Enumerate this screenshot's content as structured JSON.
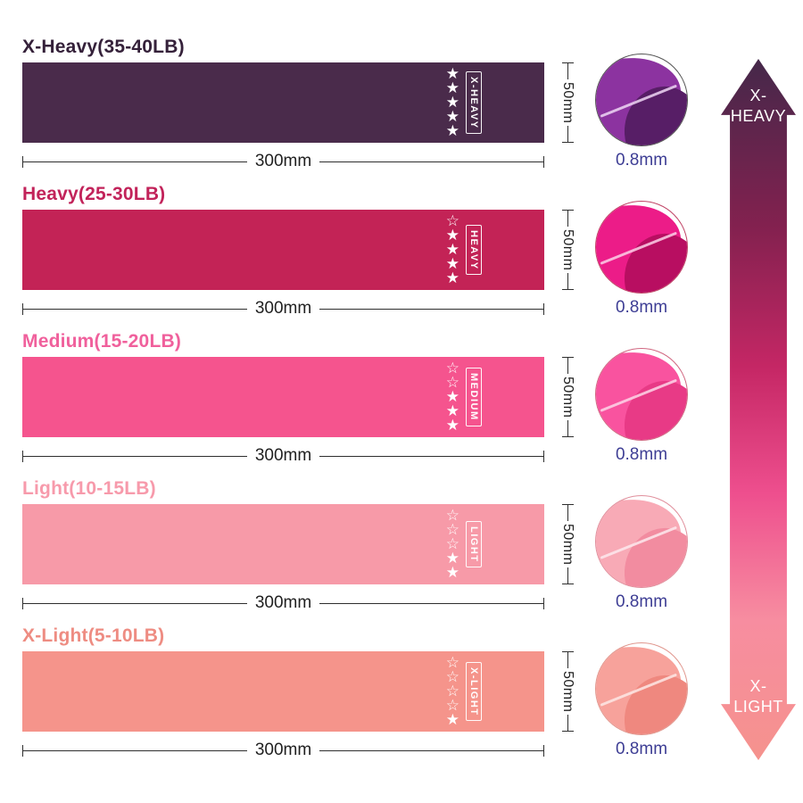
{
  "dimensions": {
    "width": "300mm",
    "height": "50mm",
    "thickness": "0.8mm"
  },
  "arrow": {
    "top_label": "X-\nHEAVY",
    "bottom_label": "X-\nLIGHT",
    "colors": [
      "#45284a",
      "#83214f",
      "#c52765",
      "#ee4f8e",
      "#f78da0",
      "#f5928d"
    ]
  },
  "products": [
    {
      "title": "X-Heavy(35-40LB)",
      "title_color": "#35213a",
      "band_color": "#4a2b4b",
      "label": "X-HEAVY",
      "stars": "★\n★\n★\n★\n★",
      "rating_filled": 5,
      "rating_max": 5,
      "swatch": {
        "face": "#8c33a0",
        "shade": "#571e66",
        "crease": "#efd7f5",
        "border": "#555555"
      }
    },
    {
      "title": "Heavy(25-30LB)",
      "title_color": "#c2235a",
      "band_color": "#c32356",
      "label": "HEAVY",
      "stars": "☆\n★\n★\n★\n★",
      "rating_filled": 4,
      "rating_max": 5,
      "swatch": {
        "face": "#ec1c88",
        "shade": "#b80e61",
        "crease": "#fbd0e8",
        "border": "#c04466"
      }
    },
    {
      "title": "Medium(15-20LB)",
      "title_color": "#f0609c",
      "band_color": "#f5548e",
      "label": "MEDIUM",
      "stars": "☆\n☆\n★\n★\n★",
      "rating_filled": 3,
      "rating_max": 5,
      "swatch": {
        "face": "#f9539f",
        "shade": "#e83a86",
        "crease": "#fdd6e8",
        "border": "#d06680"
      }
    },
    {
      "title": "Light(10-15LB)",
      "title_color": "#f79aab",
      "band_color": "#f79aa8",
      "label": "LIGHT",
      "stars": "☆\n☆\n☆\n★\n★",
      "rating_filled": 2,
      "rating_max": 5,
      "swatch": {
        "face": "#f8aab6",
        "shade": "#f28ca0",
        "crease": "#fde9ed",
        "border": "#e08f9c"
      }
    },
    {
      "title": "X-Light(5-10LB)",
      "title_color": "#ee8c82",
      "band_color": "#f5948b",
      "label": "X-LIGHT",
      "stars": "☆\n☆\n☆\n☆\n★",
      "rating_filled": 1,
      "rating_max": 5,
      "swatch": {
        "face": "#f7a29b",
        "shade": "#ef887f",
        "crease": "#fde8e5",
        "border": "#e0978e"
      }
    }
  ]
}
